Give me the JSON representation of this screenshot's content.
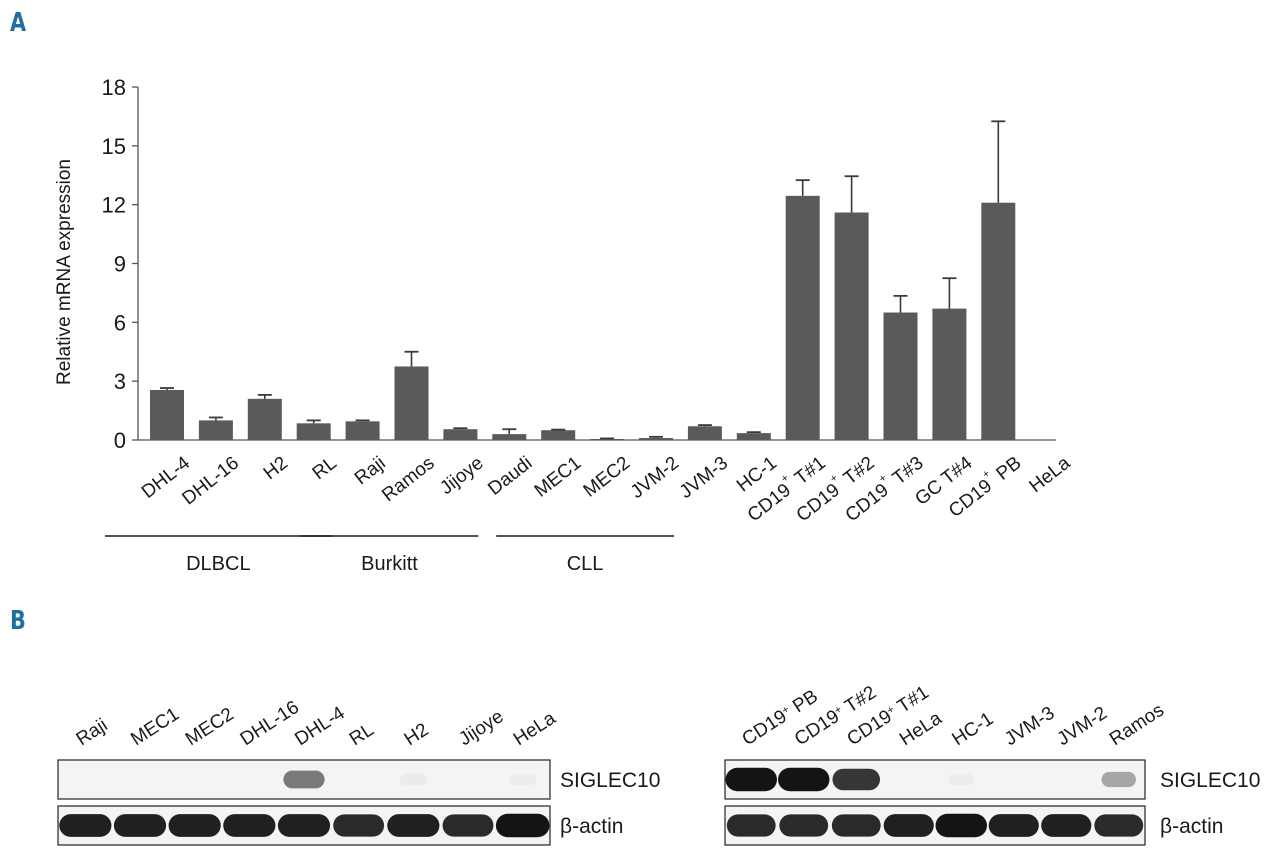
{
  "panels": {
    "a": "A",
    "b": "B"
  },
  "colors": {
    "bar": "#5a5a5a",
    "axis": "#555555",
    "text": "#1a1a1a",
    "panel_letter": "#1f6f9f",
    "band": "#141414"
  },
  "chart_data": {
    "type": "bar",
    "title": "",
    "xlabel": "",
    "ylabel": "Relative mRNA expression",
    "ylim": [
      0,
      18
    ],
    "yticks": [
      0,
      3,
      6,
      9,
      12,
      15,
      18
    ],
    "grid": false,
    "categories": [
      "DHL-4",
      "DHL-16",
      "H2",
      "RL",
      "Raji",
      "Ramos",
      "Jijoye",
      "Daudi",
      "MEC1",
      "MEC2",
      "JVM-2",
      "JVM-3",
      "HC-1",
      "CD19+ T#1",
      "CD19+ T#2",
      "CD19+ T#3",
      "GC T#4",
      "CD19+ PB",
      "HeLa"
    ],
    "tick_labels": [
      {
        "main": "DHL-4"
      },
      {
        "main": "DHL-16"
      },
      {
        "main": "H2"
      },
      {
        "main": "RL"
      },
      {
        "main": "Raji"
      },
      {
        "main": "Ramos"
      },
      {
        "main": "Jijoye"
      },
      {
        "main": "Daudi"
      },
      {
        "main": "MEC1"
      },
      {
        "main": "MEC2"
      },
      {
        "main": "JVM-2"
      },
      {
        "main": "JVM-3"
      },
      {
        "main": "HC-1"
      },
      {
        "main": "CD19",
        "sup": "+",
        "rest": " T#1"
      },
      {
        "main": "CD19",
        "sup": "+",
        "rest": " T#2"
      },
      {
        "main": "CD19",
        "sup": "+",
        "rest": " T#3"
      },
      {
        "main": "GC T#4"
      },
      {
        "main": "CD19",
        "sup": "+",
        "rest": " PB"
      },
      {
        "main": "HeLa"
      }
    ],
    "values": [
      2.55,
      1.0,
      2.1,
      0.85,
      0.95,
      3.75,
      0.55,
      0.3,
      0.5,
      0.05,
      0.1,
      0.7,
      0.35,
      12.45,
      11.6,
      6.5,
      6.7,
      12.1,
      0
    ],
    "errors": [
      0.1,
      0.15,
      0.2,
      0.15,
      0.05,
      0.75,
      0.05,
      0.25,
      0.03,
      0.03,
      0.06,
      0.06,
      0.05,
      0.8,
      1.85,
      0.85,
      1.55,
      4.15,
      0
    ],
    "groups": [
      {
        "label": "DLBCL",
        "from": 0,
        "to": 3
      },
      {
        "label": "Burkitt",
        "from": 4,
        "to": 6
      },
      {
        "label": "CLL",
        "from": 8,
        "to": 10
      }
    ]
  },
  "blots": [
    {
      "lanes": [
        {
          "main": "Raji"
        },
        {
          "main": "MEC1"
        },
        {
          "main": "MEC2"
        },
        {
          "main": "DHL-16"
        },
        {
          "main": "DHL-4"
        },
        {
          "main": "RL"
        },
        {
          "main": "H2"
        },
        {
          "main": "Jijoye"
        },
        {
          "main": "HeLa"
        }
      ],
      "rows": [
        {
          "label": "SIGLEC10",
          "intensities": [
            0,
            0,
            0,
            0,
            0.55,
            0,
            0.04,
            0,
            0.03
          ]
        },
        {
          "label": "β-actin",
          "intensities": [
            0.95,
            0.95,
            0.95,
            0.95,
            0.95,
            0.9,
            0.95,
            0.9,
            1.0
          ]
        }
      ]
    },
    {
      "lanes": [
        {
          "main": "CD19",
          "sup": "+",
          "rest": " PB"
        },
        {
          "main": "CD19",
          "sup": "+",
          "rest": " T#2"
        },
        {
          "main": "CD19",
          "sup": "+",
          "rest": " T#1"
        },
        {
          "main": "HeLa"
        },
        {
          "main": "HC-1"
        },
        {
          "main": "JVM-3"
        },
        {
          "main": "JVM-2"
        },
        {
          "main": "Ramos"
        }
      ],
      "rows": [
        {
          "label": "SIGLEC10",
          "intensities": [
            1.0,
            1.0,
            0.85,
            0,
            0.03,
            0,
            0,
            0.35
          ]
        },
        {
          "label": "β-actin",
          "intensities": [
            0.9,
            0.9,
            0.9,
            0.95,
            1.0,
            0.95,
            0.95,
            0.9
          ]
        }
      ]
    }
  ]
}
